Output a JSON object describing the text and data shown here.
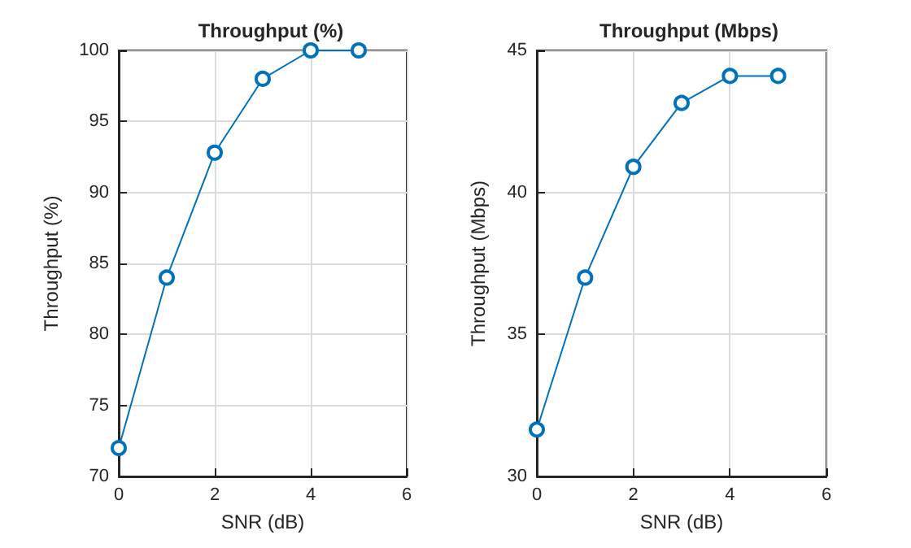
{
  "chart_data": [
    {
      "type": "line",
      "title": "Throughput (%)",
      "xlabel": "SNR (dB)",
      "ylabel": "Throughput (%)",
      "x": [
        0,
        1,
        2,
        3,
        4,
        5
      ],
      "series": [
        {
          "color": "#0072bd",
          "values": [
            72,
            84,
            92.8,
            98,
            100,
            100
          ]
        }
      ],
      "xlim": [
        0,
        6
      ],
      "xticks": [
        0,
        2,
        4,
        6
      ],
      "ylim": [
        70,
        100
      ],
      "yticks": [
        70,
        75,
        80,
        85,
        90,
        95,
        100
      ],
      "grid": true,
      "marker": "circle",
      "line_style": "solid"
    },
    {
      "type": "line",
      "title": "Throughput (Mbps)",
      "xlabel": "SNR (dB)",
      "ylabel": "Throughput (Mbps)",
      "x": [
        0,
        1,
        2,
        3,
        4,
        5
      ],
      "series": [
        {
          "color": "#0072bd",
          "values": [
            31.65,
            37,
            40.9,
            43.15,
            44.1,
            44.1
          ]
        }
      ],
      "xlim": [
        0,
        6
      ],
      "xticks": [
        0,
        2,
        4,
        6
      ],
      "ylim": [
        30,
        45
      ],
      "yticks": [
        30,
        35,
        40,
        45
      ],
      "grid": true,
      "marker": "circle",
      "line_style": "solid"
    }
  ]
}
